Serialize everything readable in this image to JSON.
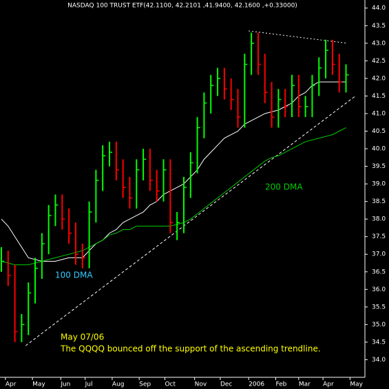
{
  "chart_data": {
    "type": "hlc",
    "title": "NASDAQ 100 TRUST ETF(42.1100, 42.2101 ,41.9400, 42.1600 ,+0.33000)",
    "up_color": "#00ff00",
    "down_color": "#ff0000",
    "x": [
      0,
      5,
      10,
      15,
      20,
      25,
      30,
      35,
      40,
      45,
      50,
      55,
      60,
      65,
      70,
      75,
      80,
      85,
      90,
      95,
      100,
      105,
      110,
      115,
      120,
      125,
      130,
      135,
      140,
      145,
      150,
      155,
      160,
      165,
      170,
      175,
      180,
      185,
      190,
      195,
      200,
      205,
      210,
      215,
      220,
      225,
      230,
      235,
      240,
      245,
      250,
      255
    ],
    "close": [
      36.8,
      36.4,
      34.8,
      35.0,
      35.9,
      36.6,
      37.3,
      38.1,
      38.4,
      38.0,
      37.6,
      37.0,
      36.9,
      38.2,
      39.1,
      39.8,
      39.9,
      39.4,
      38.9,
      38.6,
      39.4,
      39.7,
      39.1,
      38.8,
      39.4,
      37.9,
      37.9,
      38.9,
      39.6,
      40.6,
      41.3,
      41.8,
      42.0,
      41.7,
      41.4,
      40.9,
      42.4,
      43.0,
      42.4,
      41.6,
      40.9,
      41.4,
      41.2,
      41.8,
      41.2,
      41.2,
      41.8,
      42.3,
      42.8,
      42.4,
      41.9,
      42.1
    ],
    "high": [
      37.2,
      37.1,
      36.7,
      35.3,
      36.2,
      36.9,
      37.6,
      38.4,
      38.7,
      38.7,
      38.3,
      37.9,
      37.3,
      38.5,
      39.4,
      40.1,
      40.2,
      40.2,
      39.7,
      39.2,
      39.7,
      40.0,
      40.0,
      39.4,
      39.7,
      39.7,
      38.2,
      39.2,
      39.9,
      40.9,
      41.6,
      42.1,
      42.3,
      42.3,
      42.0,
      41.7,
      42.7,
      43.3,
      43.3,
      42.7,
      41.9,
      41.7,
      41.7,
      42.1,
      42.1,
      41.5,
      42.1,
      42.6,
      43.1,
      43.1,
      42.7,
      42.4
    ],
    "low": [
      36.5,
      36.1,
      34.5,
      34.5,
      34.7,
      35.6,
      36.3,
      37.0,
      37.8,
      37.7,
      37.3,
      36.7,
      36.6,
      36.6,
      37.9,
      38.8,
      39.5,
      39.1,
      38.6,
      38.3,
      38.3,
      39.1,
      38.8,
      38.5,
      38.5,
      37.6,
      37.4,
      37.6,
      38.6,
      39.3,
      40.3,
      41.0,
      41.5,
      41.4,
      41.1,
      40.6,
      40.6,
      42.1,
      42.1,
      41.3,
      40.6,
      40.6,
      40.9,
      40.9,
      40.9,
      40.9,
      40.9,
      41.5,
      42.0,
      42.1,
      41.6,
      41.6
    ],
    "series": [
      {
        "name": "100 DMA",
        "color": "#ffffff",
        "label_color": "#33ccff",
        "values": [
          38.0,
          37.8,
          37.5,
          37.2,
          36.9,
          36.85,
          36.8,
          36.8,
          36.8,
          36.85,
          36.9,
          36.9,
          36.9,
          37.1,
          37.3,
          37.4,
          37.6,
          37.7,
          37.9,
          38.0,
          38.1,
          38.2,
          38.4,
          38.5,
          38.7,
          38.8,
          38.9,
          39.0,
          39.2,
          39.4,
          39.7,
          39.9,
          40.1,
          40.3,
          40.4,
          40.5,
          40.7,
          40.8,
          40.9,
          41.0,
          41.05,
          41.1,
          41.2,
          41.3,
          41.5,
          41.6,
          41.8,
          41.9,
          41.9,
          41.9,
          41.9,
          41.9
        ]
      },
      {
        "name": "200 DMA",
        "color": "#00cc00",
        "label_color": "#00cc00",
        "values": [
          36.8,
          36.75,
          36.7,
          36.7,
          36.7,
          36.75,
          36.8,
          36.85,
          36.9,
          36.95,
          37.0,
          37.05,
          37.1,
          37.2,
          37.3,
          37.4,
          37.55,
          37.6,
          37.7,
          37.7,
          37.8,
          37.8,
          37.8,
          37.8,
          37.8,
          37.8,
          37.85,
          37.9,
          38.0,
          38.15,
          38.3,
          38.45,
          38.6,
          38.75,
          38.9,
          39.05,
          39.2,
          39.35,
          39.5,
          39.65,
          39.75,
          39.8,
          39.9,
          40.0,
          40.1,
          40.2,
          40.25,
          40.3,
          40.35,
          40.4,
          40.5,
          40.6
        ]
      }
    ],
    "trendlines": [
      {
        "x": [
          18,
          262
        ],
        "y": [
          34.4,
          41.5
        ]
      },
      {
        "x": [
          183,
          256
        ],
        "y": [
          43.35,
          43.0
        ]
      }
    ],
    "annotations": [
      "May 07/06",
      "The QQQQ bounced off the support of the ascending trendline."
    ],
    "xlim": [
      -1,
      269
    ],
    "xticks": [
      {
        "value": 3,
        "label": "Apr"
      },
      {
        "value": 23,
        "label": "May"
      },
      {
        "value": 44,
        "label": "Jun"
      },
      {
        "value": 62,
        "label": "Jul"
      },
      {
        "value": 82,
        "label": "Aug"
      },
      {
        "value": 102,
        "label": "Sep"
      },
      {
        "value": 121,
        "label": "Oct"
      },
      {
        "value": 143,
        "label": "Nov"
      },
      {
        "value": 162,
        "label": "Dec"
      },
      {
        "value": 183,
        "label": "2006"
      },
      {
        "value": 203,
        "label": "Feb"
      },
      {
        "value": 220,
        "label": "Mar"
      },
      {
        "value": 238,
        "label": "Apr"
      },
      {
        "value": 258,
        "label": "May"
      }
    ],
    "ylim": [
      33.5,
      44.23
    ],
    "yticks": [
      {
        "value": 34,
        "label": "34.0"
      },
      34.5,
      {
        "value": 35,
        "label": "35.0"
      },
      35.5,
      {
        "value": 36,
        "label": "36.0"
      },
      36.5,
      {
        "value": 37,
        "label": "37.0"
      },
      37.5,
      {
        "value": 38,
        "label": "38.0"
      },
      38.5,
      {
        "value": 39,
        "label": "39.0"
      },
      39.5,
      {
        "value": 40,
        "label": "40.0"
      },
      40.5,
      {
        "value": 41,
        "label": "41.0"
      },
      41.5,
      {
        "value": 42,
        "label": "42.0"
      },
      42.5,
      {
        "value": 43,
        "label": "43.0"
      },
      43.5,
      {
        "value": 44,
        "label": "44.0"
      }
    ]
  }
}
